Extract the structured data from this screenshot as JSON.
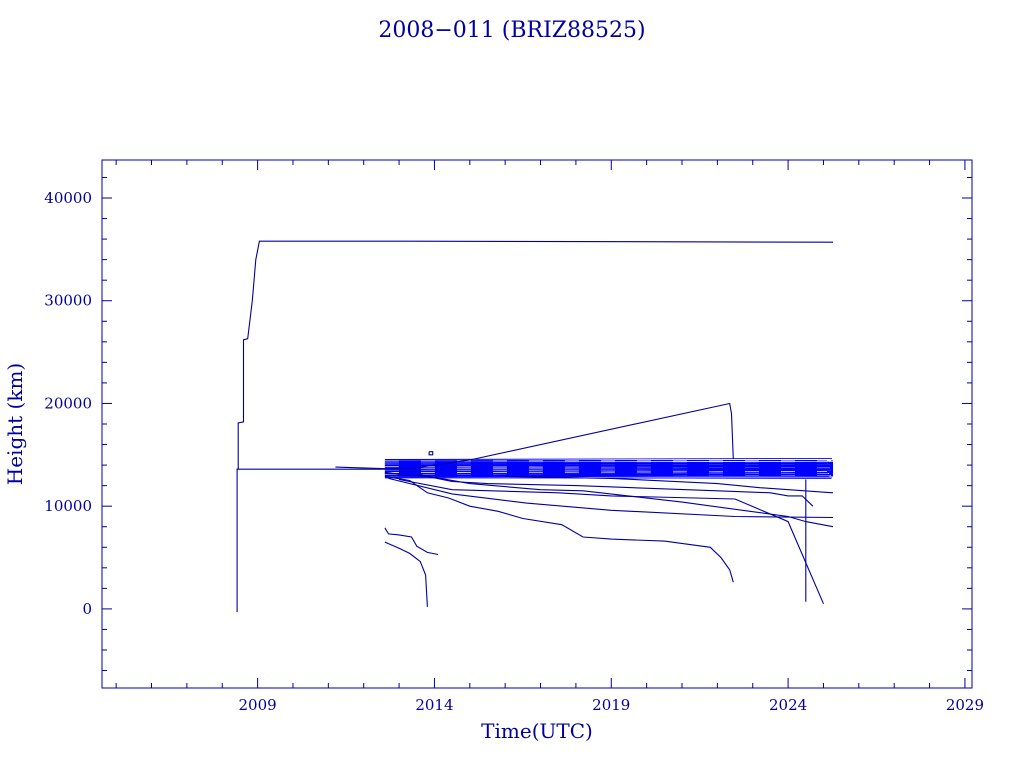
{
  "chart_data": {
    "type": "line",
    "title": "2008−011 (BRIZ88525)",
    "xlabel": "Time(UTC)",
    "ylabel": "Height (km)",
    "xlim": [
      2004.6,
      2029.2
    ],
    "ylim": [
      -7700,
      43700
    ],
    "x_ticks": [
      2009,
      2014,
      2019,
      2024,
      2029
    ],
    "x_tick_labels": [
      "2009",
      "2014",
      "2019",
      "2024",
      "2029"
    ],
    "y_ticks": [
      0,
      10000,
      20000,
      30000,
      40000
    ],
    "y_tick_labels": [
      "0",
      "10000",
      "20000",
      "30000",
      "40000"
    ],
    "grid": false,
    "line_color": "#0000a0",
    "dense_band_color": "#0000ff",
    "series": [
      {
        "values": [
          [
            2008.42,
            -300
          ],
          [
            2008.42,
            13600
          ],
          [
            2012.6,
            13600
          ]
        ]
      },
      {
        "values": [
          [
            2008.45,
            13600
          ],
          [
            2008.45,
            18100
          ],
          [
            2008.6,
            18200
          ],
          [
            2008.6,
            26200
          ],
          [
            2008.72,
            26300
          ],
          [
            2008.85,
            30000
          ],
          [
            2008.95,
            34000
          ],
          [
            2009.05,
            35800
          ],
          [
            2013.3,
            35800
          ],
          [
            2025.27,
            35700
          ]
        ]
      },
      {
        "values": [
          [
            2011.2,
            13800
          ],
          [
            2012.6,
            13650
          ],
          [
            2013.4,
            13700
          ],
          [
            2015.0,
            14500
          ],
          [
            2022.35,
            20000
          ],
          [
            2022.4,
            19000
          ],
          [
            2022.45,
            14600
          ]
        ]
      },
      {
        "values": [
          [
            2012.6,
            13300
          ],
          [
            2013.2,
            13000
          ],
          [
            2013.8,
            12900
          ],
          [
            2014.5,
            12400
          ],
          [
            2015.5,
            12200
          ],
          [
            2018.0,
            12000
          ],
          [
            2022.0,
            11500
          ],
          [
            2023.5,
            11300
          ],
          [
            2024.0,
            11000
          ],
          [
            2024.4,
            11000
          ],
          [
            2024.7,
            10000
          ]
        ]
      },
      {
        "values": [
          [
            2012.6,
            12900
          ],
          [
            2013.3,
            12500
          ],
          [
            2013.8,
            11300
          ],
          [
            2014.4,
            10800
          ],
          [
            2015.0,
            10000
          ],
          [
            2015.8,
            9500
          ],
          [
            2016.5,
            8800
          ],
          [
            2017.6,
            8200
          ],
          [
            2018.2,
            7000
          ],
          [
            2019.0,
            6800
          ],
          [
            2020.5,
            6600
          ],
          [
            2021.8,
            6000
          ],
          [
            2022.1,
            5000
          ],
          [
            2022.35,
            3800
          ],
          [
            2022.45,
            2600
          ]
        ]
      },
      {
        "values": [
          [
            2012.7,
            12700
          ],
          [
            2014.5,
            11200
          ],
          [
            2016.6,
            10300
          ],
          [
            2019.0,
            9600
          ],
          [
            2022.5,
            9000
          ],
          [
            2025.27,
            8900
          ]
        ]
      },
      {
        "values": [
          [
            2013.0,
            12600
          ],
          [
            2014.5,
            11600
          ],
          [
            2017.5,
            11300
          ],
          [
            2019.0,
            11000
          ],
          [
            2022.5,
            10700
          ],
          [
            2024.0,
            8500
          ],
          [
            2025.0,
            500
          ]
        ]
      },
      {
        "values": [
          [
            2013.5,
            13100
          ],
          [
            2015.0,
            12200
          ],
          [
            2017.0,
            11600
          ],
          [
            2018.2,
            11500
          ],
          [
            2021.0,
            10400
          ],
          [
            2024.0,
            9000
          ],
          [
            2024.5,
            8500
          ],
          [
            2025.27,
            8000
          ]
        ]
      },
      {
        "values": [
          [
            2016.0,
            12900
          ],
          [
            2019.0,
            12700
          ],
          [
            2022.0,
            12200
          ],
          [
            2023.2,
            11800
          ],
          [
            2025.27,
            11300
          ]
        ]
      },
      {
        "values": [
          [
            2024.5,
            700
          ],
          [
            2024.5,
            12600
          ]
        ]
      },
      {
        "values": [
          [
            2012.6,
            7900
          ],
          [
            2012.7,
            7300
          ],
          [
            2013.0,
            7200
          ],
          [
            2013.35,
            7000
          ],
          [
            2013.5,
            6100
          ],
          [
            2013.8,
            5500
          ],
          [
            2014.1,
            5300
          ]
        ]
      },
      {
        "values": [
          [
            2012.6,
            6500
          ],
          [
            2013.0,
            5900
          ],
          [
            2013.3,
            5400
          ],
          [
            2013.6,
            4600
          ],
          [
            2013.75,
            3300
          ],
          [
            2013.8,
            200
          ]
        ]
      },
      {
        "values": [
          [
            2013.85,
            15300
          ],
          [
            2013.95,
            15300
          ],
          [
            2013.95,
            15000
          ],
          [
            2013.85,
            15000
          ],
          [
            2013.85,
            15300
          ]
        ]
      }
    ],
    "dense_band": {
      "x": [
        2012.6,
        2025.27
      ],
      "y_range": [
        12700,
        14600
      ]
    }
  }
}
